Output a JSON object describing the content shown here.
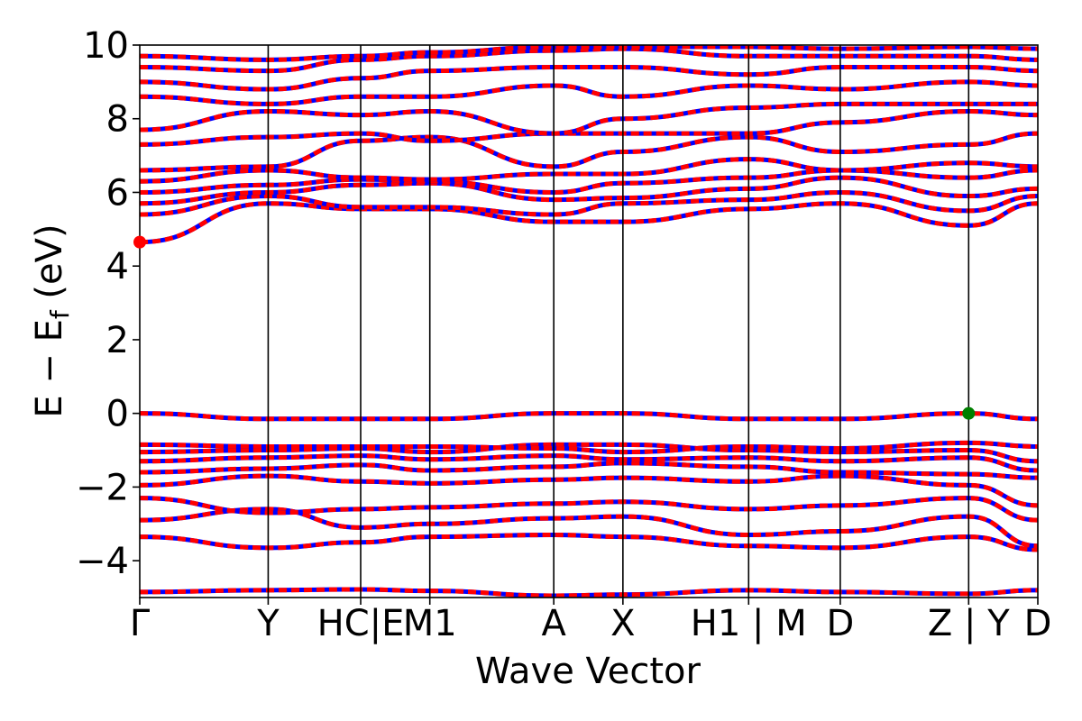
{
  "chart_data": {
    "type": "line",
    "title": "",
    "xlabel": "Wave Vector",
    "ylabel": "E − E_f (eV)",
    "ylabel_main": "E − E",
    "ylabel_sub": "f",
    "ylabel_unit": " (eV)",
    "ylim": [
      -5,
      10
    ],
    "xlim": [
      0,
      1
    ],
    "y_ticks": [
      -4,
      -2,
      0,
      2,
      4,
      6,
      8,
      10
    ],
    "y_tick_labels": [
      "−4",
      "−2",
      "0",
      "2",
      "4",
      "6",
      "8",
      "10"
    ],
    "kpoints": [
      {
        "label": "Γ",
        "x": 0.0
      },
      {
        "label": "Y",
        "x": 0.143
      },
      {
        "label": "HC|E",
        "x": 0.246
      },
      {
        "label": "M1",
        "x": 0.323
      },
      {
        "label": "A",
        "x": 0.461
      },
      {
        "label": "X",
        "x": 0.538
      },
      {
        "label": "H1 | M",
        "x": 0.678
      },
      {
        "label": "D",
        "x": 0.78
      },
      {
        "label": "Z | Y",
        "x": 0.923
      },
      {
        "label": "D",
        "x": 1.0
      }
    ],
    "band_colors": {
      "spin_up": "#ff0000",
      "spin_down": "#0000ff"
    },
    "markers": {
      "cbm": {
        "x": 0.0,
        "y": 4.65,
        "color": "#ff0000"
      },
      "vbm": {
        "x": 0.923,
        "y": 0.0,
        "color": "#008000"
      }
    },
    "series": [
      {
        "values": [
          -4.85,
          -4.8,
          -4.78,
          -4.82,
          -4.95,
          -4.92,
          -4.8,
          -4.85,
          -4.9,
          -4.8
        ]
      },
      {
        "values": [
          -3.35,
          -3.65,
          -3.5,
          -3.35,
          -3.3,
          -3.35,
          -3.6,
          -3.65,
          -3.35,
          -3.7
        ]
      },
      {
        "values": [
          -2.9,
          -2.6,
          -3.1,
          -3.0,
          -2.85,
          -2.8,
          -3.3,
          -3.2,
          -2.8,
          -3.6
        ]
      },
      {
        "values": [
          -2.3,
          -2.7,
          -2.6,
          -2.55,
          -2.45,
          -2.4,
          -2.6,
          -2.5,
          -2.3,
          -2.9
        ]
      },
      {
        "values": [
          -1.95,
          -1.7,
          -1.85,
          -1.9,
          -1.8,
          -1.75,
          -1.85,
          -1.7,
          -1.95,
          -2.5
        ]
      },
      {
        "values": [
          -1.6,
          -1.5,
          -1.4,
          -1.55,
          -1.45,
          -1.35,
          -1.45,
          -1.6,
          -1.65,
          -1.75
        ]
      },
      {
        "values": [
          -1.3,
          -1.2,
          -1.15,
          -1.25,
          -1.15,
          -1.25,
          -1.2,
          -1.3,
          -1.2,
          -1.55
        ]
      },
      {
        "values": [
          -1.05,
          -1.0,
          -0.95,
          -1.05,
          -0.85,
          -0.85,
          -1.0,
          -1.05,
          -1.0,
          -1.3
        ]
      },
      {
        "values": [
          -0.85,
          -0.9,
          -0.9,
          -0.9,
          -0.95,
          -1.05,
          -0.9,
          -0.95,
          -0.8,
          -0.9
        ]
      },
      {
        "values": [
          0.0,
          -0.15,
          -0.15,
          -0.15,
          0.0,
          0.0,
          -0.15,
          -0.15,
          0.0,
          -0.15
        ]
      },
      {
        "values": [
          4.65,
          5.7,
          5.55,
          5.55,
          5.2,
          5.2,
          5.55,
          5.7,
          5.1,
          5.7
        ]
      },
      {
        "values": [
          5.4,
          5.9,
          5.6,
          5.6,
          5.4,
          5.7,
          5.8,
          6.0,
          5.5,
          5.9
        ]
      },
      {
        "values": [
          5.7,
          6.0,
          6.2,
          6.25,
          5.8,
          5.85,
          6.1,
          6.4,
          5.9,
          6.1
        ]
      },
      {
        "values": [
          6.0,
          6.2,
          6.35,
          6.3,
          6.0,
          6.25,
          6.4,
          6.6,
          6.4,
          6.6
        ]
      },
      {
        "values": [
          6.3,
          6.6,
          6.4,
          6.35,
          6.5,
          6.5,
          6.9,
          6.6,
          6.8,
          6.7
        ]
      },
      {
        "values": [
          6.6,
          6.7,
          7.4,
          7.5,
          6.7,
          7.1,
          7.5,
          7.1,
          7.3,
          7.6
        ]
      },
      {
        "values": [
          7.3,
          7.5,
          7.6,
          7.4,
          7.6,
          7.6,
          7.6,
          7.9,
          8.2,
          8.1
        ]
      },
      {
        "values": [
          7.7,
          8.2,
          8.1,
          8.2,
          7.6,
          8.0,
          8.3,
          8.4,
          8.4,
          8.4
        ]
      },
      {
        "values": [
          8.6,
          8.4,
          8.6,
          8.6,
          8.9,
          8.6,
          8.9,
          8.8,
          9.0,
          8.9
        ]
      },
      {
        "values": [
          9.0,
          8.8,
          9.1,
          9.3,
          9.4,
          9.4,
          9.2,
          9.4,
          9.4,
          9.3
        ]
      },
      {
        "values": [
          9.4,
          9.3,
          9.6,
          9.7,
          9.85,
          9.9,
          9.7,
          9.7,
          9.7,
          9.6
        ]
      },
      {
        "values": [
          9.7,
          9.6,
          9.7,
          9.8,
          9.95,
          9.95,
          9.95,
          9.9,
          9.95,
          9.9
        ]
      }
    ]
  }
}
